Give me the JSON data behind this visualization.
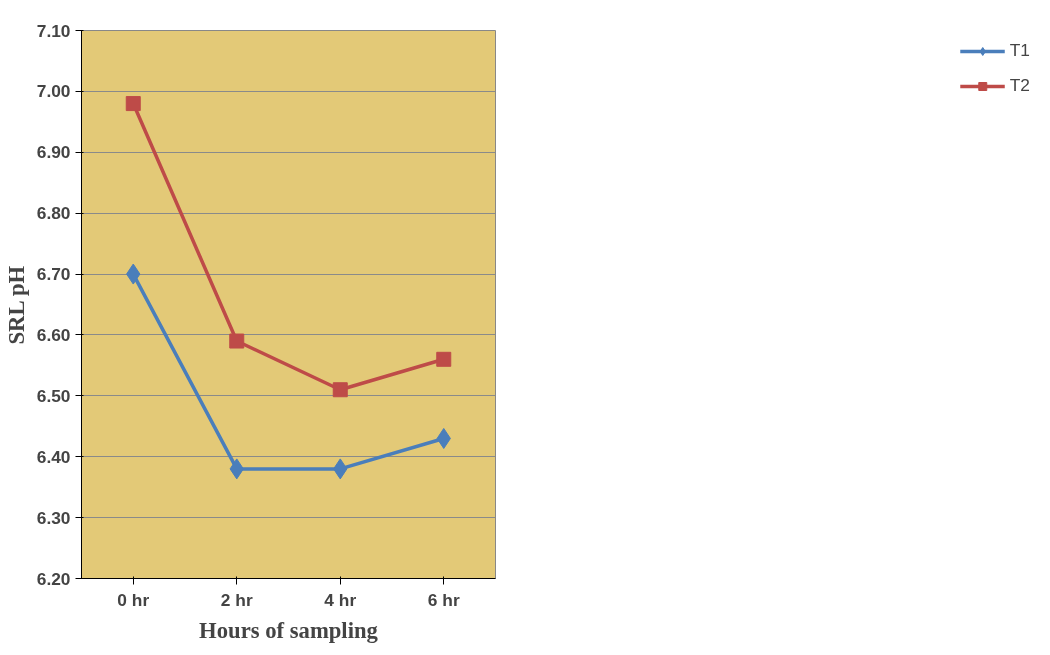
{
  "chart_data": {
    "type": "line",
    "xlabel": "Hours of sampling",
    "ylabel": "SRL pH",
    "categories": [
      "0 hr",
      "2 hr",
      "4 hr",
      "6 hr"
    ],
    "series": [
      {
        "name": "T1",
        "color": "#4a7ebb",
        "marker": "diamond",
        "values": [
          6.7,
          6.38,
          6.38,
          6.43
        ]
      },
      {
        "name": "T2",
        "color": "#be4b48",
        "marker": "square",
        "values": [
          6.98,
          6.59,
          6.51,
          6.56
        ]
      }
    ],
    "ylim": [
      6.2,
      7.1
    ],
    "yticks": [
      {
        "value": 6.2,
        "label": "6.20"
      },
      {
        "value": 6.3,
        "label": "6.30"
      },
      {
        "value": 6.4,
        "label": "6.40"
      },
      {
        "value": 6.5,
        "label": "6.50"
      },
      {
        "value": 6.6,
        "label": "6.60"
      },
      {
        "value": 6.7,
        "label": "6.70"
      },
      {
        "value": 6.8,
        "label": "6.80"
      },
      {
        "value": 6.9,
        "label": "6.90"
      },
      {
        "value": 7.0,
        "label": "7.00"
      },
      {
        "value": 7.1,
        "label": "7.10"
      }
    ],
    "grid": "y",
    "legend": "right",
    "line_style": "solid"
  }
}
